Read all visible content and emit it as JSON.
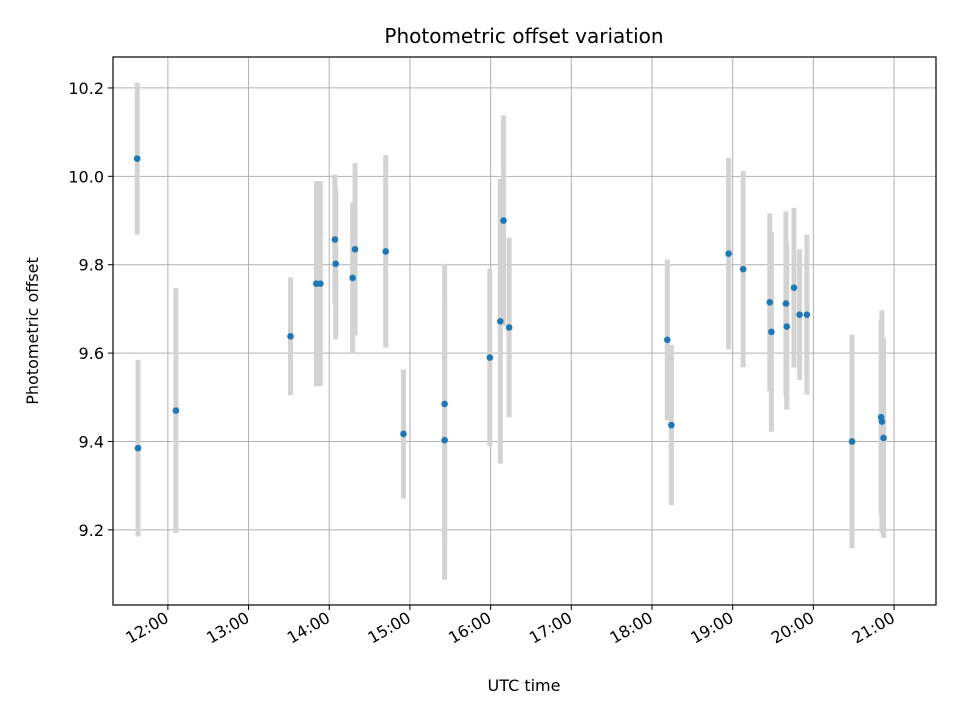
{
  "chart_data": {
    "type": "scatter",
    "title": "Photometric offset variation",
    "xlabel": "UTC time",
    "ylabel": "Photometric offset",
    "x_unit": "UTC hours",
    "xlim": [
      11.32,
      21.52
    ],
    "ylim": [
      9.03,
      10.27
    ],
    "grid": true,
    "x_ticks": [
      {
        "value": 12,
        "label": "12:00"
      },
      {
        "value": 13,
        "label": "13:00"
      },
      {
        "value": 14,
        "label": "14:00"
      },
      {
        "value": 15,
        "label": "15:00"
      },
      {
        "value": 16,
        "label": "16:00"
      },
      {
        "value": 17,
        "label": "17:00"
      },
      {
        "value": 18,
        "label": "18:00"
      },
      {
        "value": 19,
        "label": "19:00"
      },
      {
        "value": 20,
        "label": "20:00"
      },
      {
        "value": 21,
        "label": "21:00"
      }
    ],
    "y_ticks": [
      {
        "value": 9.2,
        "label": "9.2"
      },
      {
        "value": 9.4,
        "label": "9.4"
      },
      {
        "value": 9.6,
        "label": "9.6"
      },
      {
        "value": 9.8,
        "label": "9.8"
      },
      {
        "value": 10.0,
        "label": "10.0"
      },
      {
        "value": 10.2,
        "label": "10.2"
      }
    ],
    "colors": {
      "marker": "#1f77b4",
      "errorbar": "#d3d3d3",
      "grid": "#b0b0b0"
    },
    "points": [
      {
        "x": 11.62,
        "y": 10.04,
        "err": 0.172
      },
      {
        "x": 11.63,
        "y": 9.385,
        "err": 0.2
      },
      {
        "x": 12.1,
        "y": 9.47,
        "err": 0.277
      },
      {
        "x": 13.52,
        "y": 9.638,
        "err": 0.133
      },
      {
        "x": 13.84,
        "y": 9.757,
        "err": 0.232
      },
      {
        "x": 13.89,
        "y": 9.757,
        "err": 0.232
      },
      {
        "x": 14.07,
        "y": 9.857,
        "err": 0.147
      },
      {
        "x": 14.08,
        "y": 9.802,
        "err": 0.171
      },
      {
        "x": 14.29,
        "y": 9.77,
        "err": 0.171
      },
      {
        "x": 14.32,
        "y": 9.835,
        "err": 0.195
      },
      {
        "x": 14.7,
        "y": 9.83,
        "err": 0.218
      },
      {
        "x": 14.92,
        "y": 9.417,
        "err": 0.146
      },
      {
        "x": 15.43,
        "y": 9.485,
        "err": 0.317
      },
      {
        "x": 15.43,
        "y": 9.403,
        "err": 0.316
      },
      {
        "x": 15.99,
        "y": 9.59,
        "err": 0.201
      },
      {
        "x": 16.12,
        "y": 9.672,
        "err": 0.322
      },
      {
        "x": 16.16,
        "y": 9.9,
        "err": 0.238
      },
      {
        "x": 16.23,
        "y": 9.658,
        "err": 0.203
      },
      {
        "x": 18.19,
        "y": 9.63,
        "err": 0.182
      },
      {
        "x": 18.24,
        "y": 9.437,
        "err": 0.181
      },
      {
        "x": 18.95,
        "y": 9.825,
        "err": 0.217
      },
      {
        "x": 19.13,
        "y": 9.79,
        "err": 0.222
      },
      {
        "x": 19.46,
        "y": 9.715,
        "err": 0.201
      },
      {
        "x": 19.48,
        "y": 9.648,
        "err": 0.226
      },
      {
        "x": 19.66,
        "y": 9.712,
        "err": 0.209
      },
      {
        "x": 19.67,
        "y": 9.66,
        "err": 0.188
      },
      {
        "x": 19.76,
        "y": 9.748,
        "err": 0.181
      },
      {
        "x": 19.83,
        "y": 9.687,
        "err": 0.148
      },
      {
        "x": 19.92,
        "y": 9.687,
        "err": 0.181
      },
      {
        "x": 20.48,
        "y": 9.4,
        "err": 0.242
      },
      {
        "x": 20.84,
        "y": 9.455,
        "err": 0.222
      },
      {
        "x": 20.85,
        "y": 9.445,
        "err": 0.252
      },
      {
        "x": 20.87,
        "y": 9.408,
        "err": 0.226
      }
    ]
  }
}
